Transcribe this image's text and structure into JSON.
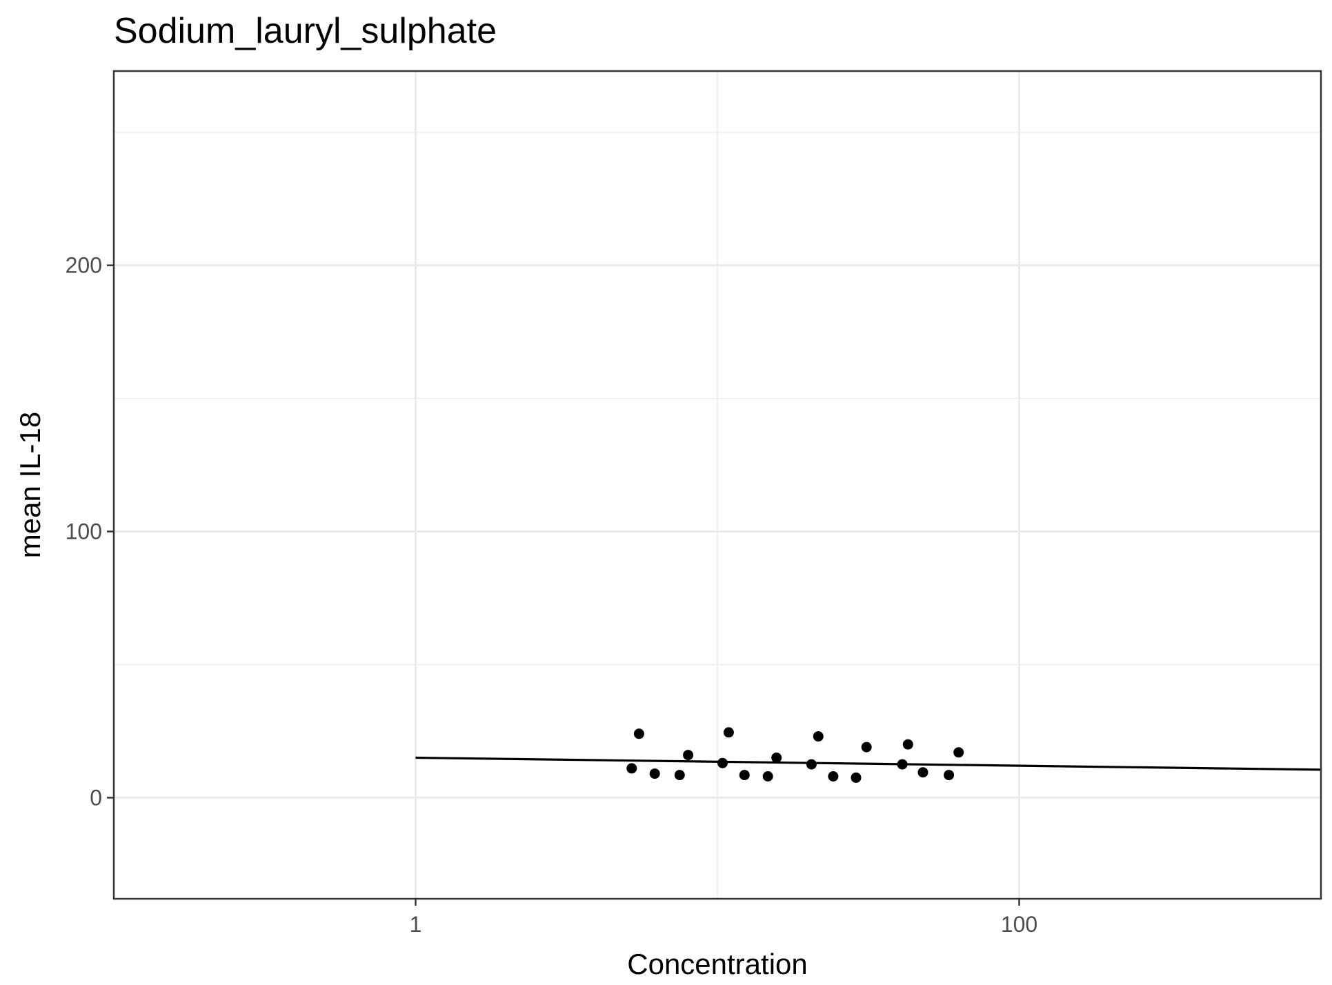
{
  "chart_data": {
    "type": "scatter",
    "title": "Sodium_lauryl_sulphate",
    "xlabel": "Concentration",
    "ylabel": "mean IL-18",
    "x_scale": "log10",
    "xlim": [
      0.1,
      1000
    ],
    "ylim": [
      -38,
      273
    ],
    "x_ticks": [
      {
        "value": 1,
        "label": "1"
      },
      {
        "value": 100,
        "label": "100"
      }
    ],
    "x_minor_ticks": [
      0.1,
      10,
      1000
    ],
    "y_ticks": [
      {
        "value": 0,
        "label": "0"
      },
      {
        "value": 100,
        "label": "100"
      },
      {
        "value": 200,
        "label": "200"
      }
    ],
    "y_minor_ticks": [
      50,
      150,
      250
    ],
    "grid": true,
    "legend": "none",
    "point_color": "#000000",
    "line_color": "#000000",
    "points": [
      {
        "x": 5.2,
        "y": 11
      },
      {
        "x": 5.5,
        "y": 24
      },
      {
        "x": 6.2,
        "y": 9
      },
      {
        "x": 7.5,
        "y": 8.5
      },
      {
        "x": 8.0,
        "y": 16
      },
      {
        "x": 10.4,
        "y": 13
      },
      {
        "x": 10.9,
        "y": 24.5
      },
      {
        "x": 12.3,
        "y": 8.5
      },
      {
        "x": 14.7,
        "y": 8
      },
      {
        "x": 15.7,
        "y": 15
      },
      {
        "x": 20.5,
        "y": 12.5
      },
      {
        "x": 21.6,
        "y": 23
      },
      {
        "x": 24.2,
        "y": 8
      },
      {
        "x": 28.8,
        "y": 7.5
      },
      {
        "x": 31.2,
        "y": 19
      },
      {
        "x": 41.0,
        "y": 12.5
      },
      {
        "x": 42.8,
        "y": 20
      },
      {
        "x": 48.0,
        "y": 9.5
      },
      {
        "x": 58.5,
        "y": 8.5
      },
      {
        "x": 63.0,
        "y": 17
      }
    ],
    "fit_line": [
      {
        "x": 1,
        "y": 15
      },
      {
        "x": 1000,
        "y": 10.5
      }
    ]
  }
}
